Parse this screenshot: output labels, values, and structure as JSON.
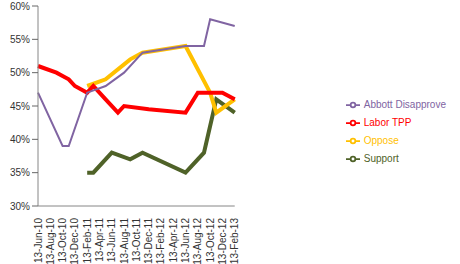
{
  "chart_data": {
    "type": "line",
    "categories": [
      "13-Jun-10",
      null,
      "13-Aug-10",
      null,
      "13-Oct-10",
      null,
      "13-Dec-10",
      null,
      "13-Feb-11",
      null,
      "13-Apr-11",
      null,
      "13-Jun-11",
      null,
      "13-Aug-11",
      null,
      "13-Oct-11",
      null,
      "13-Dec-11",
      null,
      "13-Feb-12",
      null,
      "13-Apr-12",
      null,
      "13-Jun-12",
      null,
      "13-Aug-12",
      null,
      "13-Oct-12",
      null,
      "13-Dec-12",
      null,
      "13-Feb-13"
    ],
    "series": [
      {
        "name": "Support",
        "color": "#4f6228",
        "values": [
          null,
          null,
          null,
          null,
          null,
          null,
          null,
          null,
          35,
          35,
          null,
          null,
          38,
          null,
          null,
          37,
          null,
          38,
          null,
          null,
          null,
          null,
          null,
          null,
          35,
          null,
          null,
          38,
          null,
          46,
          null,
          null,
          44
        ]
      },
      {
        "name": "Oppose",
        "color": "#ffc000",
        "values": [
          null,
          null,
          null,
          null,
          null,
          null,
          null,
          null,
          48,
          null,
          null,
          49,
          null,
          null,
          null,
          52,
          null,
          53,
          null,
          null,
          null,
          null,
          null,
          null,
          54,
          null,
          null,
          null,
          47,
          44,
          null,
          null,
          46
        ]
      },
      {
        "name": "Labor TPP",
        "color": "#ff0000",
        "values": [
          51,
          null,
          null,
          50,
          49.5,
          49,
          48,
          null,
          47,
          48,
          null,
          46,
          null,
          44,
          45,
          null,
          null,
          null,
          44.5,
          null,
          null,
          null,
          null,
          null,
          44,
          null,
          47,
          null,
          47,
          null,
          47,
          null,
          46
        ]
      },
      {
        "name": "Abbott Disapprove",
        "color": "#8064a2",
        "values": [
          47,
          null,
          null,
          null,
          39,
          39,
          null,
          null,
          47,
          null,
          null,
          48,
          null,
          null,
          50,
          null,
          null,
          53,
          null,
          null,
          null,
          null,
          null,
          null,
          54,
          null,
          null,
          54,
          58,
          null,
          null,
          null,
          57
        ]
      }
    ],
    "ylim": [
      30,
      60
    ],
    "yticks": [
      {
        "value": 30,
        "label": "30%"
      },
      {
        "value": 35,
        "label": "35%"
      },
      {
        "value": 40,
        "label": "40%"
      },
      {
        "value": 45,
        "label": "45%"
      },
      {
        "value": 50,
        "label": "50%"
      },
      {
        "value": 55,
        "label": "55%"
      },
      {
        "value": 60,
        "label": "60%"
      }
    ],
    "grid": false,
    "legend": "right"
  }
}
